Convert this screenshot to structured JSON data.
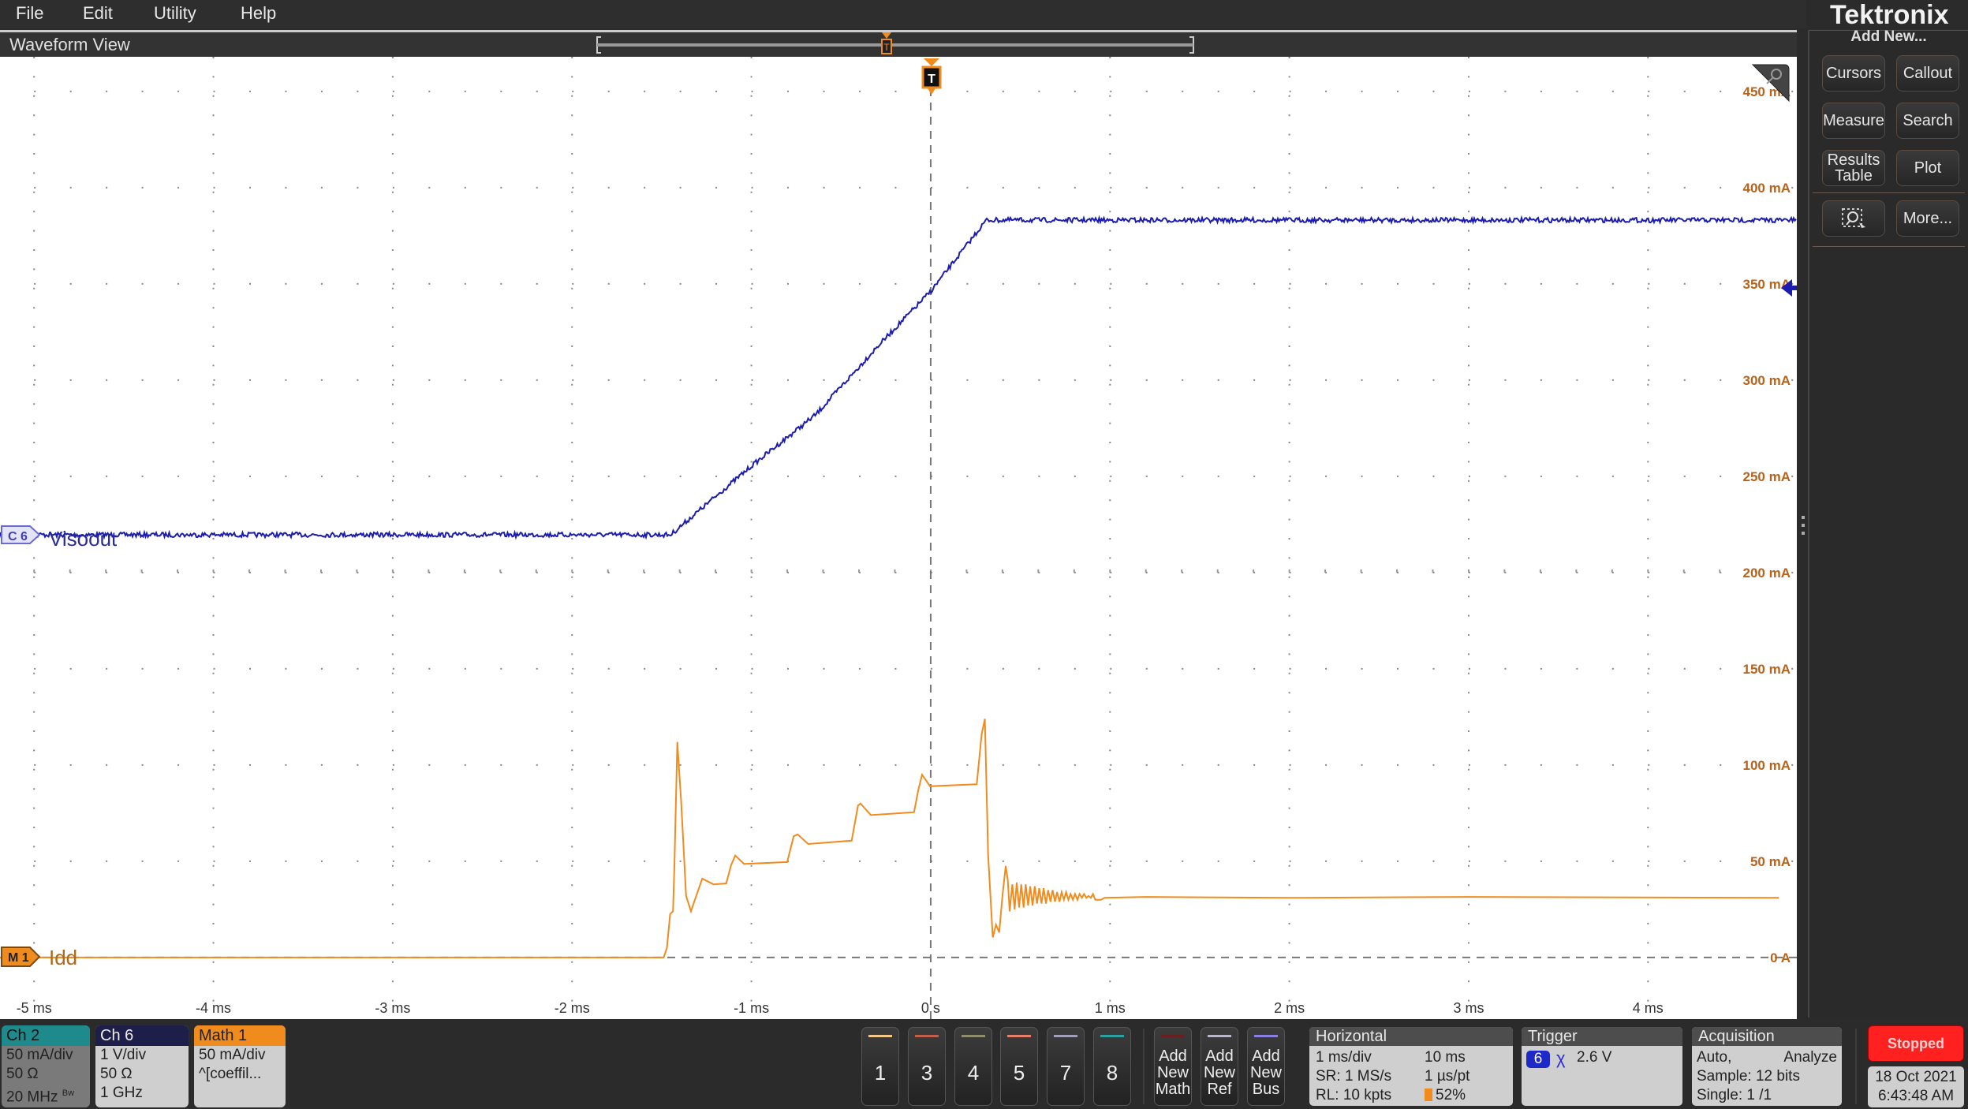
{
  "menu": {
    "items": [
      "File",
      "Edit",
      "Utility",
      "Help"
    ]
  },
  "waveform_view": {
    "title": "Waveform View",
    "trigger_marker": "T"
  },
  "brand": {
    "logo": "Tektronix"
  },
  "right_panel": {
    "heading": "Add New...",
    "buttons": [
      "Cursors",
      "Callout",
      "Measure",
      "Search",
      "Results Table",
      "Plot",
      "zoom-select-icon",
      "More..."
    ]
  },
  "channels": [
    {
      "label": "Ch 2",
      "lines": [
        "50 mA/div",
        "50 Ω",
        "20 MHz"
      ],
      "bw_badge": "Bw",
      "color": "#1f8a8c"
    },
    {
      "label": "Ch 6",
      "lines": [
        "1 V/div",
        "50 Ω",
        "1 GHz"
      ],
      "color": "#1e1e4a"
    },
    {
      "label": "Math 1",
      "lines": [
        "50 mA/div",
        "^[coeffil..."
      ],
      "color": "#f08c1e"
    }
  ],
  "channel_buttons": [
    {
      "label": "1",
      "color": "#f5c78a"
    },
    {
      "label": "3",
      "color": "#c0604a"
    },
    {
      "label": "4",
      "color": "#8e8e6e"
    },
    {
      "label": "5",
      "color": "#e8806a"
    },
    {
      "label": "7",
      "color": "#a0a0b8"
    },
    {
      "label": "8",
      "color": "#2aa0a0"
    }
  ],
  "add_buttons": [
    {
      "label": "Add New Math",
      "color": "#6a2020"
    },
    {
      "label": "Add New Ref",
      "color": "#b8b8c8"
    },
    {
      "label": "Add New Bus",
      "color": "#8a80e0"
    }
  ],
  "horizontal": {
    "title": "Horizontal",
    "scale": "1 ms/div",
    "duration": "10 ms",
    "sample_rate": "SR: 1 MS/s",
    "resolution": "1 µs/pt",
    "record_length": "RL: 10 kpts",
    "position": "52%"
  },
  "trigger": {
    "title": "Trigger",
    "source": "6",
    "level": "2.6 V",
    "slope_icon": "edge-either-icon"
  },
  "acquisition": {
    "title": "Acquisition",
    "mode": "Auto,",
    "analyze": "Analyze",
    "sample": "Sample: 12 bits",
    "single": "Single: 1 /1"
  },
  "status": {
    "run_state": "Stopped",
    "date": "18 Oct 2021",
    "time": "6:43:48 AM",
    "color": "#ff2020"
  },
  "chart_data": {
    "type": "line",
    "x_unit": "ms",
    "xlim": [
      -5.19,
      4.83
    ],
    "x_tick_labels": [
      "-5 ms",
      "-4 ms",
      "-3 ms",
      "-2 ms",
      "-1 ms",
      "0 s",
      "1 ms",
      "2 ms",
      "3 ms",
      "4 ms"
    ],
    "x_ticks": [
      -5,
      -4,
      -3,
      -2,
      -1,
      0,
      1,
      2,
      3,
      4
    ],
    "y_unit": "mA",
    "ylim": [
      -32,
      468
    ],
    "y_tick_labels": [
      "0 A",
      "50 mA",
      "100 mA",
      "150 mA",
      "200 mA",
      "250 mA",
      "300 mA",
      "350 mA",
      "400 mA",
      "450 mA"
    ],
    "y_ticks": [
      0,
      50,
      100,
      150,
      200,
      250,
      300,
      350,
      400,
      450
    ],
    "grid": true,
    "series": [
      {
        "name": "Visoout",
        "marker": "C 6",
        "unit": "V",
        "scale": "1 V/div",
        "color": "#1c1cb0",
        "points": [
          [
            -5.19,
            0
          ],
          [
            -1.45,
            0
          ],
          [
            -0.99,
            0.73
          ],
          [
            -0.64,
            1.25
          ],
          [
            -0.29,
            1.97
          ],
          [
            0,
            2.53
          ],
          [
            0.31,
            3.27
          ],
          [
            4.83,
            3.27
          ]
        ]
      },
      {
        "name": "Idd",
        "marker": "M 1",
        "unit": "mA",
        "scale": "50 mA/div",
        "color": "#f08c1e",
        "points": [
          [
            -5.19,
            0
          ],
          [
            -1.489,
            0
          ],
          [
            -1.471,
            5
          ],
          [
            -1.453,
            22.6
          ],
          [
            -1.437,
            24
          ],
          [
            -1.429,
            47.6
          ],
          [
            -1.413,
            112
          ],
          [
            -1.391,
            80
          ],
          [
            -1.364,
            32
          ],
          [
            -1.337,
            24
          ],
          [
            -1.319,
            29
          ],
          [
            -1.274,
            41
          ],
          [
            -1.211,
            38
          ],
          [
            -1.14,
            38.5
          ],
          [
            -1.113,
            48
          ],
          [
            -1.09,
            53
          ],
          [
            -1.041,
            48.6
          ],
          [
            -0.8,
            49.6
          ],
          [
            -0.764,
            63
          ],
          [
            -0.742,
            64
          ],
          [
            -0.683,
            59
          ],
          [
            -0.441,
            60.7
          ],
          [
            -0.405,
            79
          ],
          [
            -0.391,
            80
          ],
          [
            -0.334,
            74
          ],
          [
            -0.093,
            75.5
          ],
          [
            -0.069,
            87
          ],
          [
            -0.048,
            95
          ],
          [
            -0.003,
            89
          ],
          [
            0.257,
            90
          ],
          [
            0.284,
            116
          ],
          [
            0.302,
            124
          ],
          [
            0.32,
            53.6
          ],
          [
            0.346,
            10.4
          ],
          [
            0.364,
            17
          ],
          [
            0.382,
            13
          ],
          [
            0.4,
            32
          ],
          [
            0.418,
            47.6
          ],
          [
            0.43,
            40
          ],
          [
            0.44,
            24
          ],
          [
            0.455,
            38
          ],
          [
            0.468,
            25
          ],
          [
            0.48,
            39
          ],
          [
            0.493,
            26
          ],
          [
            0.505,
            38
          ],
          [
            0.518,
            26
          ],
          [
            0.53,
            38
          ],
          [
            0.543,
            27
          ],
          [
            0.555,
            37
          ],
          [
            0.568,
            27
          ],
          [
            0.58,
            37
          ],
          [
            0.593,
            28
          ],
          [
            0.605,
            36
          ],
          [
            0.618,
            28
          ],
          [
            0.63,
            36
          ],
          [
            0.643,
            28
          ],
          [
            0.655,
            35
          ],
          [
            0.668,
            29
          ],
          [
            0.68,
            35
          ],
          [
            0.693,
            29
          ],
          [
            0.705,
            34
          ],
          [
            0.718,
            29
          ],
          [
            0.73,
            34
          ],
          [
            0.743,
            30
          ],
          [
            0.755,
            34
          ],
          [
            0.768,
            30
          ],
          [
            0.78,
            33
          ],
          [
            0.793,
            30
          ],
          [
            0.805,
            33
          ],
          [
            0.818,
            30
          ],
          [
            0.83,
            33
          ],
          [
            0.843,
            31
          ],
          [
            0.855,
            33
          ],
          [
            0.868,
            31
          ],
          [
            0.88,
            32
          ],
          [
            0.893,
            31
          ],
          [
            0.905,
            33
          ],
          [
            0.918,
            30
          ],
          [
            0.95,
            30
          ],
          [
            0.97,
            31
          ],
          [
            1.2,
            31.5
          ],
          [
            2,
            31
          ],
          [
            3,
            31.5
          ],
          [
            4.73,
            31
          ]
        ]
      }
    ],
    "trigger": {
      "time_ms": 0,
      "level_V": 2.6
    }
  }
}
